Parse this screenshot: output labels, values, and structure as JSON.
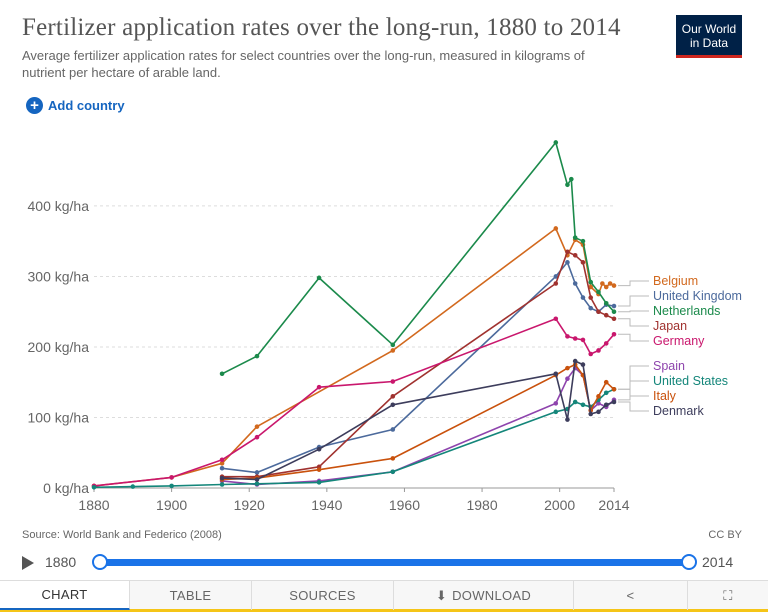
{
  "header": {
    "title": "Fertilizer application rates over the long-run, 1880 to 2014",
    "subtitle": "Average fertilizer application rates for select countries over the long-run, measured in kilograms of nutrient per hectare of arable land.",
    "logo_line1": "Our World",
    "logo_line2": "in Data"
  },
  "controls": {
    "add_country": "Add country"
  },
  "footer": {
    "source": "Source: World Bank and Federico (2008)",
    "license": "CC BY"
  },
  "timeline": {
    "start": "1880",
    "end": "2014"
  },
  "tabs": [
    "CHART",
    "TABLE",
    "SOURCES",
    "DOWNLOAD"
  ],
  "chart_data": {
    "type": "line",
    "xlim": [
      1880,
      2014
    ],
    "ylim": [
      0,
      500
    ],
    "y_ticks": [
      0,
      100,
      200,
      300,
      400
    ],
    "y_tick_labels": [
      "0 kg/ha",
      "100 kg/ha",
      "200 kg/ha",
      "300 kg/ha",
      "400 kg/ha"
    ],
    "x_ticks": [
      1880,
      1900,
      1920,
      1940,
      1960,
      1980,
      2000,
      2014
    ],
    "x_tick_labels": [
      "1880",
      "1900",
      "1920",
      "1940",
      "1960",
      "1980",
      "2000",
      "2014"
    ],
    "grid": "horizontal-dashed",
    "series": [
      {
        "name": "Belgium",
        "color": "#d2691e",
        "points": [
          [
            1880,
            3
          ],
          [
            1900,
            15
          ],
          [
            1913,
            35
          ],
          [
            1922,
            87
          ],
          [
            1957,
            195
          ],
          [
            1999,
            368
          ],
          [
            2002,
            330
          ],
          [
            2004,
            352
          ],
          [
            2006,
            345
          ],
          [
            2008,
            285
          ],
          [
            2010,
            275
          ],
          [
            2011,
            290
          ],
          [
            2012,
            285
          ],
          [
            2013,
            290
          ],
          [
            2014,
            287
          ]
        ]
      },
      {
        "name": "United Kingdom",
        "color": "#4c6a9c",
        "points": [
          [
            1913,
            28
          ],
          [
            1922,
            22
          ],
          [
            1938,
            58
          ],
          [
            1957,
            83
          ],
          [
            1999,
            300
          ],
          [
            2002,
            320
          ],
          [
            2004,
            290
          ],
          [
            2006,
            270
          ],
          [
            2008,
            255
          ],
          [
            2010,
            250
          ],
          [
            2012,
            260
          ],
          [
            2014,
            258
          ]
        ]
      },
      {
        "name": "Netherlands",
        "color": "#1b8a4b",
        "points": [
          [
            1913,
            162
          ],
          [
            1922,
            187
          ],
          [
            1938,
            298
          ],
          [
            1957,
            203
          ],
          [
            1999,
            490
          ],
          [
            2002,
            430
          ],
          [
            2003,
            438
          ],
          [
            2004,
            355
          ],
          [
            2006,
            350
          ],
          [
            2008,
            292
          ],
          [
            2010,
            278
          ],
          [
            2012,
            262
          ],
          [
            2014,
            250
          ]
        ]
      },
      {
        "name": "Japan",
        "color": "#a0322f",
        "points": [
          [
            1913,
            16
          ],
          [
            1922,
            16
          ],
          [
            1938,
            30
          ],
          [
            1957,
            130
          ],
          [
            1999,
            290
          ],
          [
            2002,
            335
          ],
          [
            2004,
            330
          ],
          [
            2006,
            320
          ],
          [
            2008,
            270
          ],
          [
            2010,
            250
          ],
          [
            2012,
            245
          ],
          [
            2014,
            240
          ]
        ]
      },
      {
        "name": "Germany",
        "color": "#c9176d",
        "points": [
          [
            1880,
            3
          ],
          [
            1900,
            15
          ],
          [
            1913,
            40
          ],
          [
            1922,
            72
          ],
          [
            1938,
            143
          ],
          [
            1957,
            151
          ],
          [
            1999,
            240
          ],
          [
            2002,
            215
          ],
          [
            2004,
            212
          ],
          [
            2006,
            210
          ],
          [
            2008,
            190
          ],
          [
            2010,
            195
          ],
          [
            2012,
            205
          ],
          [
            2014,
            218
          ]
        ]
      },
      {
        "name": "Spain",
        "color": "#8e44ad",
        "points": [
          [
            1913,
            10
          ],
          [
            1922,
            5
          ],
          [
            1938,
            10
          ],
          [
            1957,
            23
          ],
          [
            1999,
            120
          ],
          [
            2002,
            155
          ],
          [
            2004,
            170
          ],
          [
            2006,
            160
          ],
          [
            2008,
            110
          ],
          [
            2010,
            120
          ],
          [
            2012,
            115
          ],
          [
            2014,
            125
          ]
        ]
      },
      {
        "name": "United States",
        "color": "#14867a",
        "points": [
          [
            1880,
            1
          ],
          [
            1890,
            2
          ],
          [
            1900,
            3
          ],
          [
            1913,
            5
          ],
          [
            1922,
            6
          ],
          [
            1938,
            8
          ],
          [
            1957,
            23
          ],
          [
            1999,
            108
          ],
          [
            2002,
            112
          ],
          [
            2004,
            122
          ],
          [
            2006,
            118
          ],
          [
            2008,
            115
          ],
          [
            2010,
            125
          ],
          [
            2012,
            135
          ],
          [
            2014,
            140
          ]
        ]
      },
      {
        "name": "Italy",
        "color": "#c9510c",
        "points": [
          [
            1913,
            12
          ],
          [
            1922,
            14
          ],
          [
            1938,
            26
          ],
          [
            1957,
            42
          ],
          [
            1999,
            160
          ],
          [
            2002,
            170
          ],
          [
            2004,
            175
          ],
          [
            2006,
            160
          ],
          [
            2008,
            110
          ],
          [
            2010,
            130
          ],
          [
            2012,
            150
          ],
          [
            2014,
            140
          ]
        ]
      },
      {
        "name": "Denmark",
        "color": "#3d3d5c",
        "points": [
          [
            1913,
            14
          ],
          [
            1922,
            12
          ],
          [
            1938,
            55
          ],
          [
            1957,
            118
          ],
          [
            1999,
            162
          ],
          [
            2002,
            97
          ],
          [
            2004,
            180
          ],
          [
            2006,
            175
          ],
          [
            2008,
            105
          ],
          [
            2010,
            108
          ],
          [
            2012,
            118
          ],
          [
            2014,
            122
          ]
        ]
      }
    ]
  }
}
